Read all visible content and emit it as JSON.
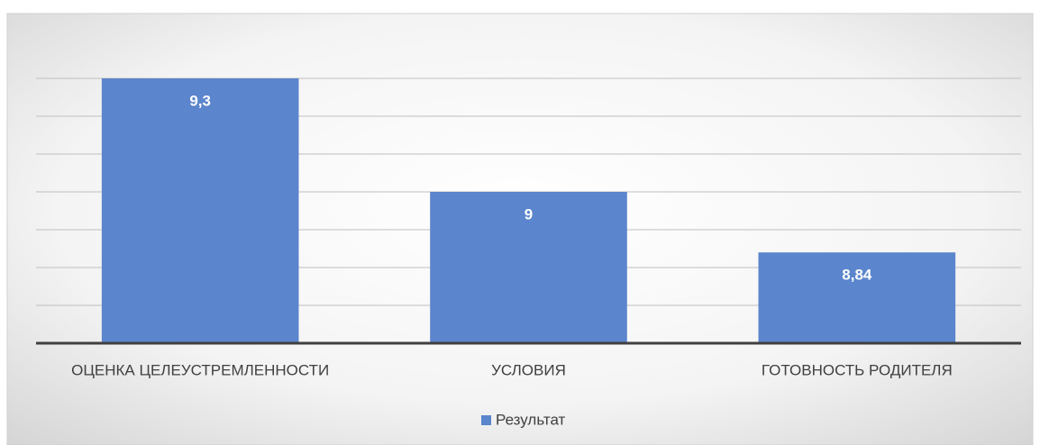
{
  "chart_data": {
    "type": "bar",
    "categories": [
      "ОЦЕНКА ЦЕЛЕУСТРЕМЛЕННОСТИ",
      "УСЛОВИЯ",
      "ГОТОВНОСТЬ РОДИТЕЛЯ"
    ],
    "series": [
      {
        "name": "Результат",
        "color": "#5b85cc",
        "values": [
          9.3,
          9,
          8.84
        ],
        "value_labels": [
          "9,3",
          "9",
          "8,84"
        ]
      }
    ],
    "ylim": [
      8.6,
      9.3
    ],
    "yticks": [
      8.6,
      8.7,
      8.8,
      8.9,
      9,
      9.1,
      9.2,
      9.3
    ],
    "grid": true,
    "legend": "bottom"
  }
}
